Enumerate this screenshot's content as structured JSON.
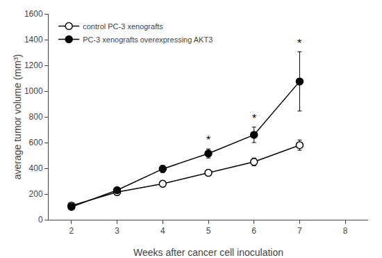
{
  "chart_data": {
    "type": "line",
    "x": [
      2,
      3,
      4,
      5,
      6,
      7
    ],
    "series": [
      {
        "name": "control PC-3 xenografts",
        "color": "#000000",
        "marker": "open circle",
        "values": [
          110,
          215,
          280,
          365,
          450,
          580
        ],
        "errors": [
          20,
          25,
          25,
          25,
          30,
          40
        ]
      },
      {
        "name": "PC-3 xenografts overexpressing AKT3",
        "color": "#000000",
        "marker": "filled circle",
        "values": [
          100,
          230,
          395,
          515,
          660,
          1075
        ],
        "errors": [
          18,
          22,
          28,
          35,
          60,
          230
        ]
      }
    ],
    "annotations": [
      {
        "text": "*",
        "x": 5,
        "series": "PC-3 xenografts overexpressing AKT3"
      },
      {
        "text": "*",
        "x": 6,
        "series": "PC-3 xenografts overexpressing AKT3"
      },
      {
        "text": "*",
        "x": 7,
        "series": "PC-3 xenografts overexpressing AKT3"
      }
    ],
    "xlabel": "Weeks after cancer cell inoculation",
    "ylabel": "average tumor volume (mm³)",
    "xlim": [
      1.5,
      8.5
    ],
    "xticks": [
      2,
      3,
      4,
      5,
      6,
      7,
      8
    ],
    "ylim": [
      0,
      1600
    ],
    "yticks": [
      0,
      200,
      400,
      600,
      800,
      1000,
      1200,
      1400,
      1600
    ],
    "grid": false,
    "legend": "upper left"
  }
}
